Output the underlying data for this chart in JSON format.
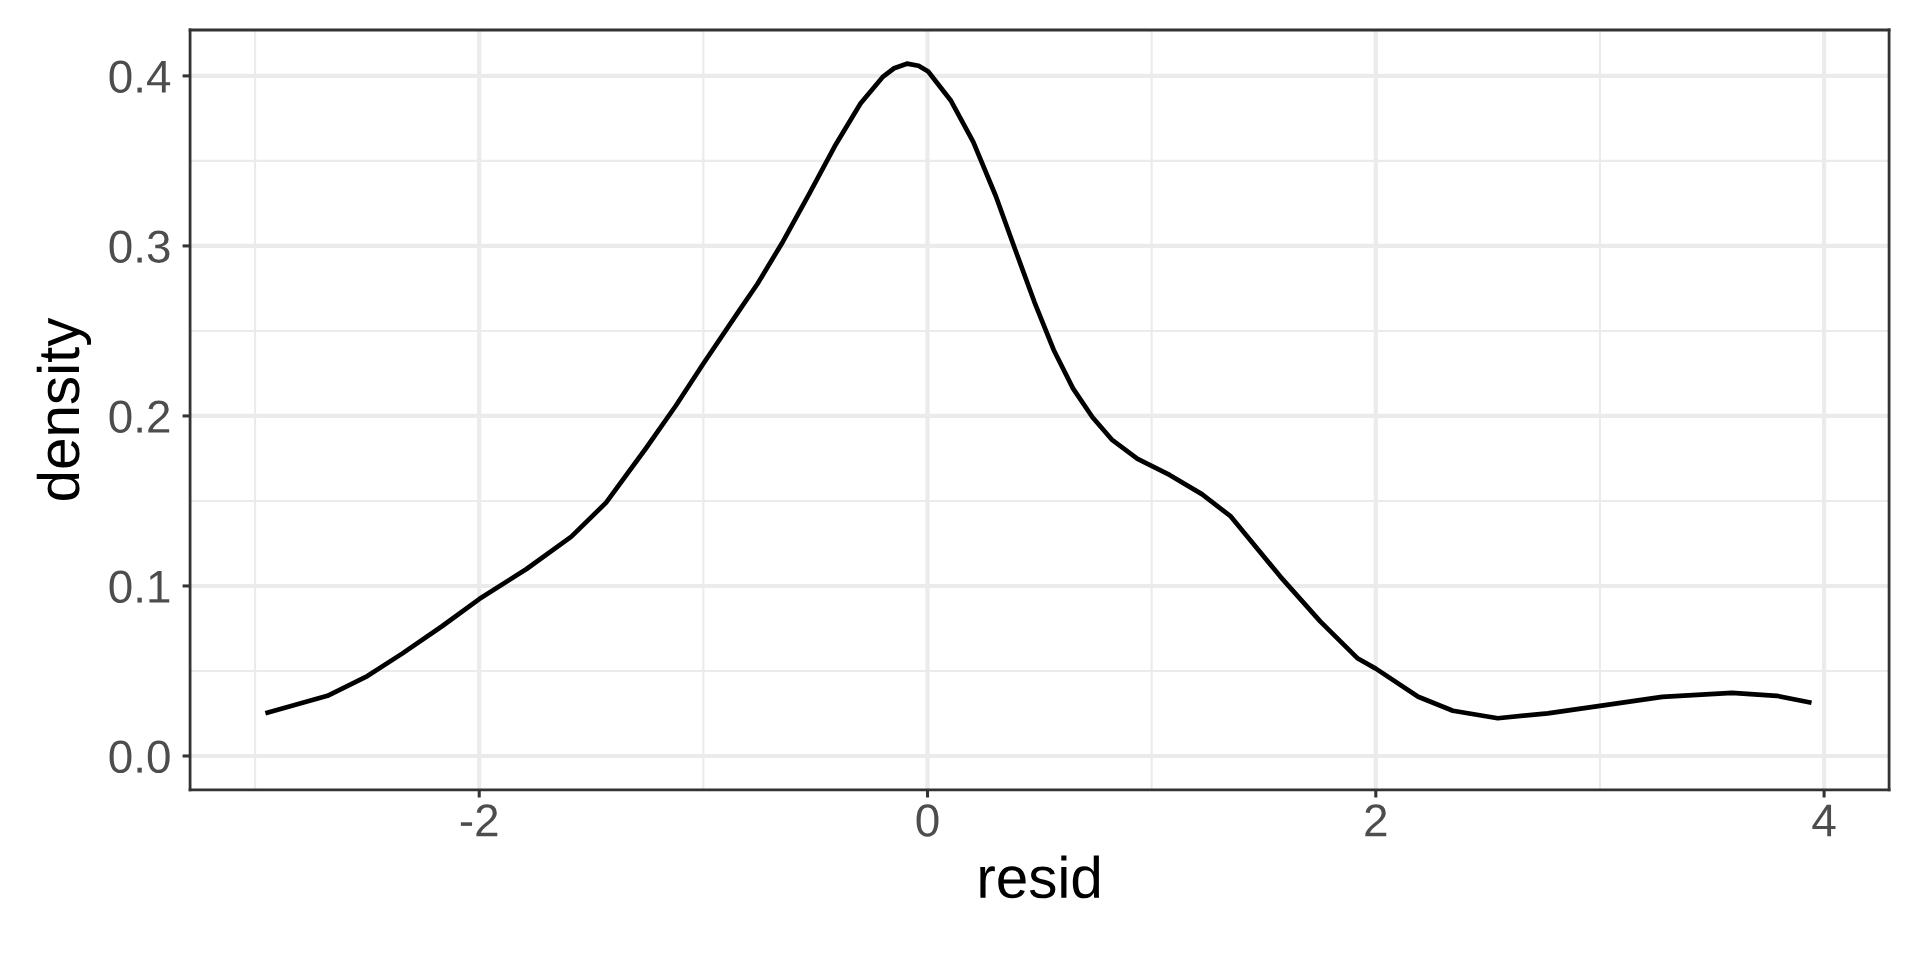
{
  "chart_data": {
    "type": "line",
    "xlabel": "resid",
    "ylabel": "density",
    "x": [
      -2.954,
      -2.677,
      -2.499,
      -2.344,
      -2.166,
      -2.0,
      -1.789,
      -1.589,
      -1.434,
      -1.256,
      -1.123,
      -0.999,
      -0.835,
      -0.759,
      -0.644,
      -0.529,
      -0.414,
      -0.299,
      -0.198,
      -0.149,
      -0.092,
      -0.04,
      0.003,
      0.103,
      0.204,
      0.305,
      0.391,
      0.477,
      0.563,
      0.649,
      0.736,
      0.822,
      0.937,
      1.08,
      1.224,
      1.353,
      1.574,
      1.752,
      1.92,
      2.0,
      2.189,
      2.344,
      2.544,
      2.767,
      3.0,
      3.278,
      3.589,
      3.789,
      3.944
    ],
    "series": [
      {
        "color": "#000000",
        "values": [
          0.0251,
          0.0354,
          0.047,
          0.0602,
          0.0763,
          0.0923,
          0.11,
          0.129,
          0.149,
          0.181,
          0.206,
          0.231,
          0.263,
          0.2776,
          0.3028,
          0.3303,
          0.3586,
          0.3838,
          0.3996,
          0.4045,
          0.4072,
          0.406,
          0.4026,
          0.3857,
          0.3612,
          0.3292,
          0.2979,
          0.267,
          0.2388,
          0.2162,
          0.1992,
          0.1861,
          0.1748,
          0.1653,
          0.154,
          0.1409,
          0.1055,
          0.0792,
          0.0573,
          0.0514,
          0.0348,
          0.0266,
          0.0222,
          0.0251,
          0.0295,
          0.0348,
          0.0371,
          0.0354,
          0.0313
        ]
      }
    ],
    "xlim": [
      -3.29,
      4.29
    ],
    "ylim": [
      -0.02,
      0.427
    ],
    "xticks": [
      -2,
      0,
      2,
      4
    ],
    "yticks": [
      {
        "value": 0,
        "label": "0.0"
      },
      0.1,
      0.2,
      0.3,
      0.4
    ],
    "grid": true,
    "marker": "none",
    "line_style": "solid"
  }
}
